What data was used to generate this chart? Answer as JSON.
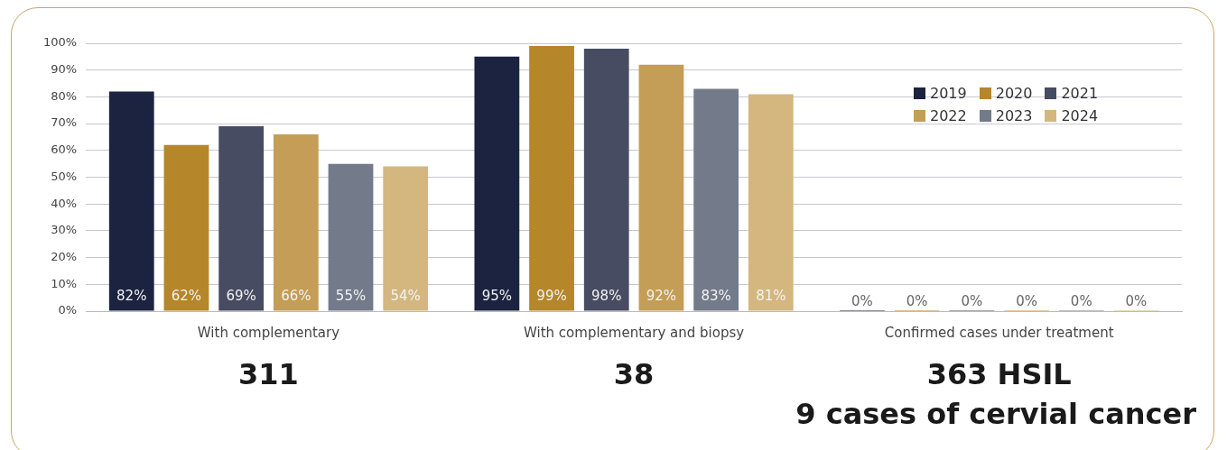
{
  "chart_data": {
    "type": "bar",
    "categories": [
      "With complementary",
      "With complementary and biopsy",
      "Confirmed cases under treatment"
    ],
    "series": [
      {
        "name": "2019",
        "color": "#1b2340",
        "values": [
          82,
          95,
          0
        ],
        "value_labels": [
          "82%",
          "95%",
          "0%"
        ]
      },
      {
        "name": "2020",
        "color": "#b5862a",
        "values": [
          62,
          99,
          0
        ],
        "value_labels": [
          "62%",
          "99%",
          "0%"
        ]
      },
      {
        "name": "2021",
        "color": "#474c62",
        "values": [
          69,
          98,
          0
        ],
        "value_labels": [
          "69%",
          "98%",
          "0%"
        ]
      },
      {
        "name": "2022",
        "color": "#c49d56",
        "values": [
          66,
          92,
          0
        ],
        "value_labels": [
          "66%",
          "92%",
          "0%"
        ]
      },
      {
        "name": "2023",
        "color": "#737a8a",
        "values": [
          55,
          83,
          0
        ],
        "value_labels": [
          "55%",
          "83%",
          "0%"
        ]
      },
      {
        "name": "2024",
        "color": "#d4b77f",
        "values": [
          54,
          81,
          0
        ],
        "value_labels": [
          "54%",
          "81%",
          "0%"
        ]
      }
    ],
    "ylim": [
      0,
      100
    ],
    "yticks": [
      {
        "value": 0,
        "label": "0%"
      },
      {
        "value": 10,
        "label": "10%"
      },
      {
        "value": 20,
        "label": "20%"
      },
      {
        "value": 30,
        "label": "30%"
      },
      {
        "value": 40,
        "label": "40%"
      },
      {
        "value": 50,
        "label": "50%"
      },
      {
        "value": 60,
        "label": "60%"
      },
      {
        "value": 70,
        "label": "70%"
      },
      {
        "value": 80,
        "label": "80%"
      },
      {
        "value": 90,
        "label": "90%"
      },
      {
        "value": 100,
        "label": "100%"
      }
    ],
    "grid": "y",
    "legend": "top right",
    "annotations": [
      "311",
      "38",
      "363 HSIL\n9 cases of cervial cancer"
    ]
  }
}
